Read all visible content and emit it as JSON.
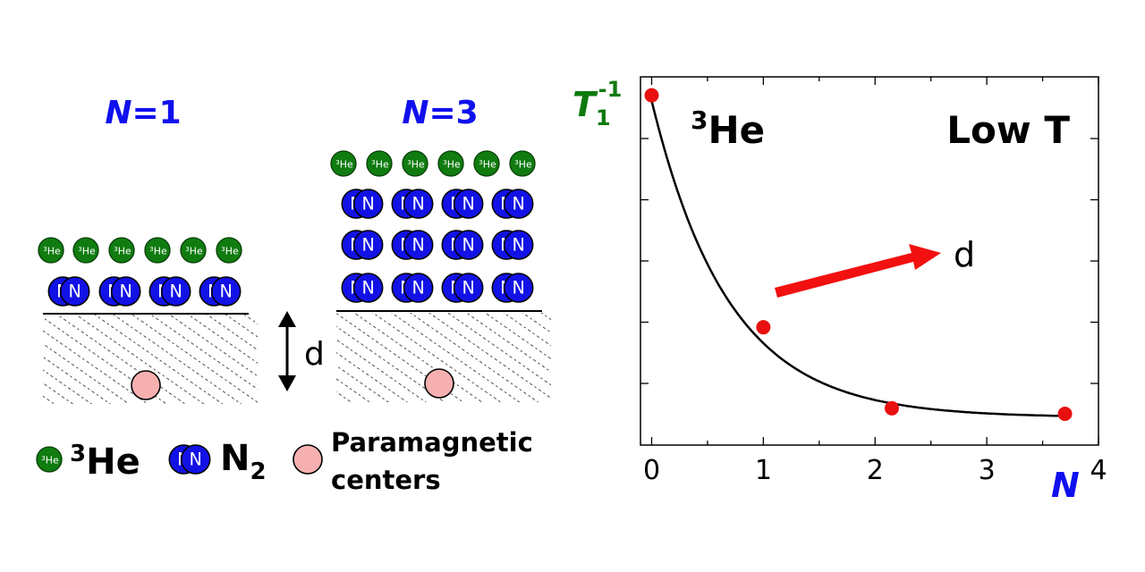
{
  "left": {
    "panel1": {
      "n_var": "N",
      "n_eq": "=1",
      "layers": 1
    },
    "panel3": {
      "n_var": "N",
      "n_eq": "=3",
      "layers": 3
    },
    "distance_label": "d",
    "he_symbol": "He",
    "he_mass": "3",
    "n_symbol": "N"
  },
  "legend": {
    "he_mass": "3",
    "he_label": "He",
    "n2_label": "N",
    "n2_sub": "2",
    "para_line1": "Paramagnetic",
    "para_line2": "centers"
  },
  "plot": {
    "ylabel_main": "T",
    "ylabel_sub": "1",
    "ylabel_sup": "-1",
    "xlabel": "N",
    "he_mass": "3",
    "he_text": "He",
    "lowT": "Low T",
    "arrow_label": "d",
    "xticks": [
      "0",
      "1",
      "2",
      "3",
      "4"
    ]
  },
  "colors": {
    "he_green": "#107c10",
    "n_blue": "#1212e6",
    "para_pink": "#f7b0b0",
    "point_red": "#e81010",
    "label_blue": "#1010ee"
  },
  "chart_data": {
    "type": "scatter",
    "x": [
      0,
      1,
      2.15,
      3.7
    ],
    "y": [
      0.95,
      0.32,
      0.1,
      0.085
    ],
    "xlim": [
      -0.1,
      4
    ],
    "ylim": [
      0,
      1.0
    ],
    "fit_curve": "decaying",
    "xlabel": "N",
    "ylabel": "T1^-1"
  }
}
